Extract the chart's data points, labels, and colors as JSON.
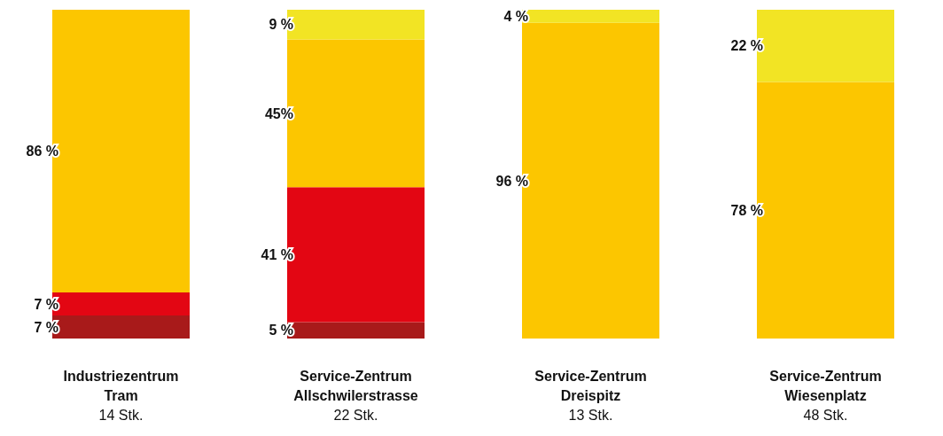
{
  "chart_data": {
    "type": "bar",
    "stacked": true,
    "categories": [
      "Industriezentrum Tram",
      "Service-Zentrum Allschwilerstrasse",
      "Service-Zentrum Dreispitz",
      "Service-Zentrum Wiesenplatz"
    ],
    "series": [
      {
        "color": "#a81a1a",
        "values": [
          7,
          5,
          null,
          null
        ],
        "value_labels": [
          "7 %",
          "5 %",
          null,
          null
        ]
      },
      {
        "color": "#e30613",
        "values": [
          7,
          41,
          null,
          null
        ],
        "value_labels": [
          "7 %",
          "41 %",
          null,
          null
        ]
      },
      {
        "color": "#fcc600",
        "values": [
          86,
          45,
          96,
          78
        ],
        "value_labels": [
          "86 %",
          "45%",
          "96 %",
          "78 %"
        ]
      },
      {
        "color": "#f2e424",
        "values": [
          null,
          9,
          4,
          22
        ],
        "value_labels": [
          null,
          "9 %",
          "4 %",
          "22 %"
        ]
      }
    ],
    "annotations": [
      "14 Stk.",
      "22 Stk.",
      "13 Stk.",
      "48 Stk."
    ],
    "grid": false,
    "legend": false
  }
}
